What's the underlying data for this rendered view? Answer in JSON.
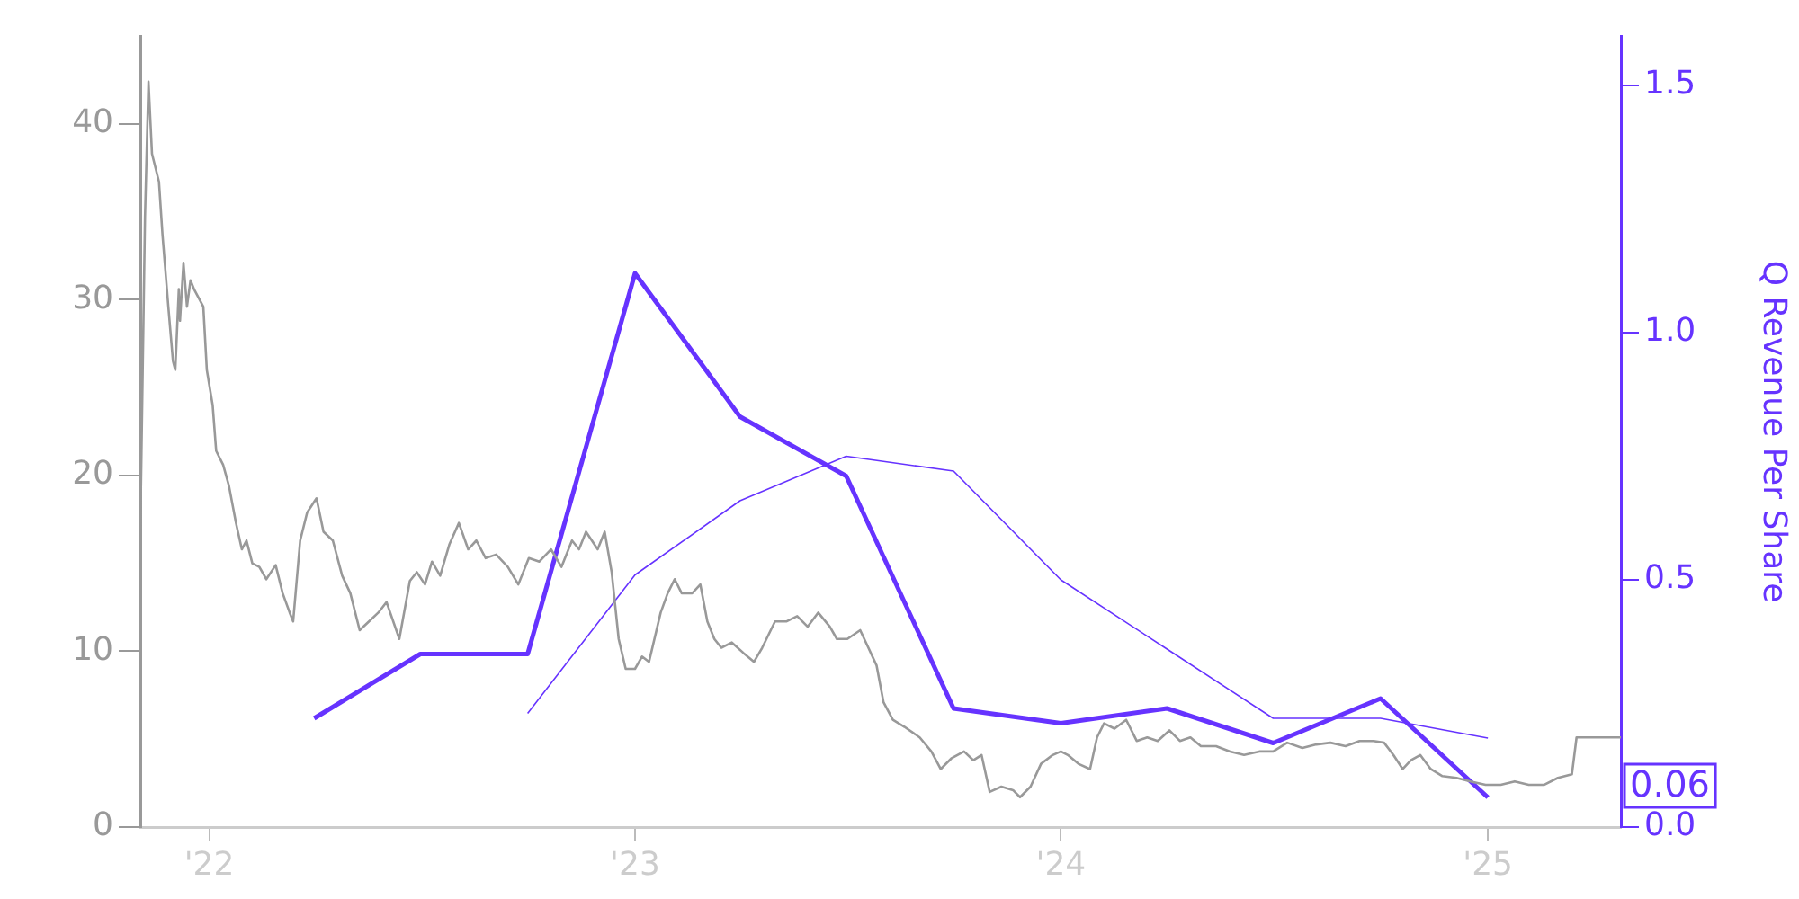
{
  "chart_data": {
    "type": "line",
    "y2label": "Q Revenue Per Share",
    "xlim": [
      "2021-11-03",
      "2025-04-25"
    ],
    "xticks": [
      {
        "value": "2022-01-01",
        "label": "'22"
      },
      {
        "value": "2023-01-01",
        "label": "'23"
      },
      {
        "value": "2024-01-01",
        "label": "'24"
      },
      {
        "value": "2025-01-01",
        "label": "'25"
      }
    ],
    "ylim": [
      0,
      45
    ],
    "yticks": [
      0,
      10,
      20,
      30,
      40
    ],
    "y2lim": [
      0,
      1.6
    ],
    "y2ticks": [
      {
        "value": 0,
        "label": "0.0"
      },
      0.5,
      {
        "value": 1,
        "label": "1.0"
      },
      1.5
    ],
    "grid": false,
    "legend": false,
    "marker": "none",
    "line_style": "solid",
    "annotations": [
      "0.06"
    ],
    "series": [
      {
        "color": "#999999",
        "x": [
          "2021-11-03",
          "2021-11-07",
          "2021-11-10",
          "2021-11-13",
          "2021-11-19",
          "2021-11-22",
          "2021-11-27",
          "2021-12-01",
          "2021-12-03",
          "2021-12-06",
          "2021-12-07",
          "2021-12-10",
          "2021-12-13",
          "2021-12-16",
          "2021-12-19",
          "2021-12-27",
          "2021-12-30",
          "2022-01-04",
          "2022-01-07",
          "2022-01-13",
          "2022-01-18",
          "2022-01-24",
          "2022-01-29",
          "2022-02-02",
          "2022-02-07",
          "2022-02-13",
          "2022-02-19",
          "2022-02-27",
          "2022-03-05",
          "2022-03-11",
          "2022-03-14",
          "2022-03-20",
          "2022-03-26",
          "2022-04-03",
          "2022-04-09",
          "2022-04-17",
          "2022-04-25",
          "2022-05-02",
          "2022-05-10",
          "2022-05-18",
          "2022-05-26",
          "2022-06-02",
          "2022-06-13",
          "2022-06-22",
          "2022-06-28",
          "2022-07-05",
          "2022-07-11",
          "2022-07-18",
          "2022-07-26",
          "2022-08-03",
          "2022-08-11",
          "2022-08-18",
          "2022-08-26",
          "2022-09-04",
          "2022-09-14",
          "2022-09-23",
          "2022-10-02",
          "2022-10-11",
          "2022-10-21",
          "2022-10-30",
          "2022-11-08",
          "2022-11-14",
          "2022-11-20",
          "2022-11-30",
          "2022-12-06",
          "2022-12-12",
          "2022-12-18",
          "2022-12-24",
          "2023-01-01",
          "2023-01-07",
          "2023-01-13",
          "2023-01-23",
          "2023-01-29",
          "2023-02-04",
          "2023-02-10",
          "2023-02-16",
          "2023-02-19",
          "2023-02-26",
          "2023-03-04",
          "2023-03-10",
          "2023-03-16",
          "2023-03-25",
          "2023-04-04",
          "2023-04-13",
          "2023-04-20",
          "2023-05-01",
          "2023-05-11",
          "2023-05-20",
          "2023-05-29",
          "2023-06-07",
          "2023-06-17",
          "2023-06-23",
          "2023-07-02",
          "2023-07-13",
          "2023-07-20",
          "2023-07-27",
          "2023-08-02",
          "2023-08-10",
          "2023-08-20",
          "2023-09-02",
          "2023-09-12",
          "2023-09-20",
          "2023-09-29",
          "2023-10-10",
          "2023-10-18",
          "2023-10-25",
          "2023-11-01",
          "2023-11-11",
          "2023-11-21",
          "2023-11-27",
          "2023-12-06",
          "2023-12-15",
          "2023-12-25",
          "2024-01-01",
          "2024-01-07",
          "2024-01-16",
          "2024-01-26",
          "2024-02-01",
          "2024-02-07",
          "2024-02-16",
          "2024-02-26",
          "2024-03-06",
          "2024-03-15",
          "2024-03-24",
          "2024-04-03",
          "2024-04-12",
          "2024-04-21",
          "2024-04-30",
          "2024-05-13",
          "2024-05-25",
          "2024-06-06",
          "2024-06-19",
          "2024-07-01",
          "2024-07-13",
          "2024-07-26",
          "2024-08-07",
          "2024-08-19",
          "2024-09-01",
          "2024-09-13",
          "2024-09-25",
          "2024-10-04",
          "2024-10-12",
          "2024-10-20",
          "2024-10-27",
          "2024-11-04",
          "2024-11-13",
          "2024-11-23",
          "2024-12-05",
          "2024-12-17",
          "2024-12-30",
          "2025-01-12",
          "2025-01-24",
          "2025-02-05",
          "2025-02-18",
          "2025-03-02",
          "2025-03-14",
          "2025-03-18",
          "2025-04-02",
          "2025-04-25"
        ],
        "values": [
          16.8,
          34.7,
          42.4,
          38.3,
          36.7,
          33.7,
          29.6,
          26.5,
          26.0,
          30.6,
          28.8,
          32.1,
          29.6,
          31.1,
          30.6,
          29.6,
          26.0,
          24.0,
          21.4,
          20.6,
          19.4,
          17.3,
          15.8,
          16.3,
          15.0,
          14.8,
          14.1,
          14.9,
          13.3,
          12.2,
          11.7,
          16.3,
          17.9,
          18.7,
          16.8,
          16.3,
          14.3,
          13.3,
          11.2,
          11.7,
          12.2,
          12.8,
          10.7,
          14.0,
          14.5,
          13.8,
          15.1,
          14.3,
          16.1,
          17.3,
          15.8,
          16.3,
          15.3,
          15.5,
          14.8,
          13.8,
          15.3,
          15.1,
          15.8,
          14.8,
          16.3,
          15.8,
          16.8,
          15.8,
          16.8,
          14.5,
          10.7,
          9.0,
          9.0,
          9.7,
          9.4,
          12.2,
          13.3,
          14.1,
          13.3,
          13.3,
          13.3,
          13.8,
          11.7,
          10.7,
          10.2,
          10.5,
          9.9,
          9.4,
          10.2,
          11.7,
          11.7,
          12.0,
          11.4,
          12.2,
          11.4,
          10.7,
          10.7,
          11.2,
          10.2,
          9.2,
          7.1,
          6.1,
          5.7,
          5.1,
          4.3,
          3.3,
          3.9,
          4.3,
          3.8,
          4.1,
          2.0,
          2.3,
          2.1,
          1.7,
          2.3,
          3.6,
          4.1,
          4.3,
          4.1,
          3.6,
          3.3,
          5.1,
          5.9,
          5.6,
          6.1,
          4.9,
          5.1,
          4.9,
          5.5,
          4.9,
          5.1,
          4.6,
          4.6,
          4.3,
          4.1,
          4.3,
          4.3,
          4.8,
          4.5,
          4.7,
          4.8,
          4.6,
          4.9,
          4.9,
          4.8,
          4.1,
          3.3,
          3.8,
          4.1,
          3.3,
          2.9,
          2.8,
          2.6,
          2.4,
          2.4,
          2.6,
          2.4,
          2.4,
          2.8,
          3.0,
          5.1,
          5.1,
          5.1
        ]
      },
      {
        "color": "#6633ff",
        "axis": "y2",
        "x": [
          "2022-04-01",
          "2022-07-01",
          "2022-10-01",
          "2023-01-01",
          "2023-04-01",
          "2023-07-01",
          "2023-10-01",
          "2024-01-01",
          "2024-04-01",
          "2024-07-01",
          "2024-10-01",
          "2025-01-01"
        ],
        "values": [
          0.22,
          0.35,
          0.35,
          1.12,
          0.83,
          0.71,
          0.24,
          0.21,
          0.24,
          0.17,
          0.26,
          0.06
        ]
      },
      {
        "color": "#6633ff",
        "axis": "y2",
        "x": [
          "2022-10-01",
          "2023-01-01",
          "2023-04-01",
          "2023-07-01",
          "2023-10-01",
          "2024-01-01",
          "2024-04-01",
          "2024-07-01",
          "2024-10-01",
          "2025-01-01"
        ],
        "values": [
          0.23,
          0.51,
          0.66,
          0.75,
          0.72,
          0.5,
          0.36,
          0.22,
          0.22,
          0.18
        ]
      }
    ]
  }
}
